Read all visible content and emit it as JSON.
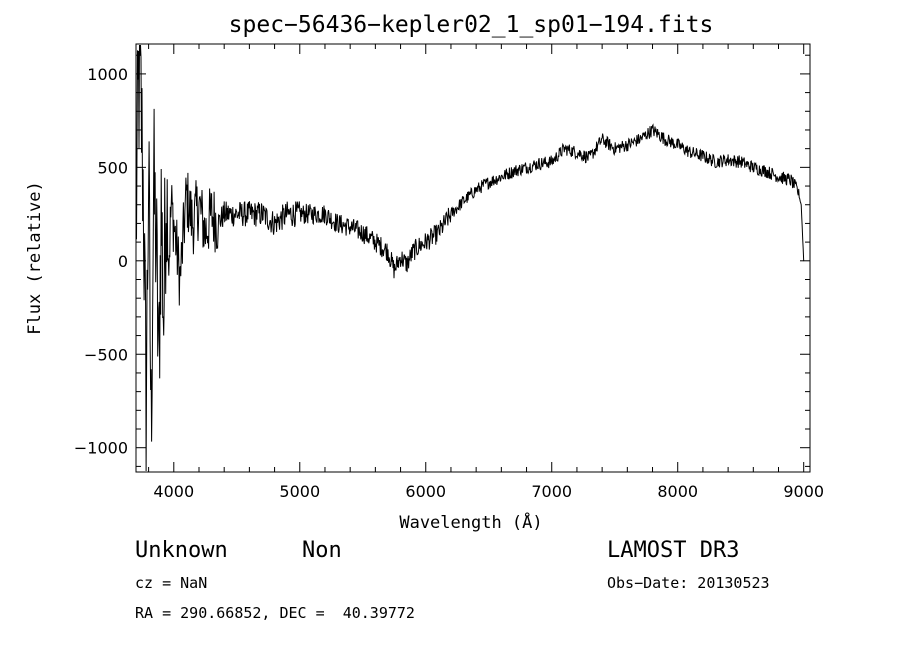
{
  "chart_data": {
    "type": "line",
    "title": "spec−56436−kepler02_1_sp01−194.fits",
    "xlabel": "Wavelength (Å)",
    "ylabel": "Flux (relative)",
    "xlim": [
      3700,
      9050
    ],
    "ylim": [
      -1130,
      1160
    ],
    "xticks": [
      4000,
      5000,
      6000,
      7000,
      8000,
      9000
    ],
    "xtick_labels": [
      "4000",
      "5000",
      "6000",
      "7000",
      "8000",
      "9000"
    ],
    "yticks": [
      -1000,
      -500,
      0,
      500,
      1000
    ],
    "ytick_labels": [
      "−1000",
      "−500",
      "0",
      "500",
      "1000"
    ],
    "grid": false,
    "legend": "none",
    "series": [
      {
        "x": [
          3700,
          3720,
          3740,
          3760,
          3780,
          3800,
          3820,
          3840,
          3860,
          3880,
          3900,
          3920,
          3940,
          3960,
          3980,
          4000,
          4050,
          4100,
          4150,
          4200,
          4250,
          4300,
          4350,
          4400,
          4500,
          4600,
          4700,
          4800,
          4900,
          5000,
          5100,
          5200,
          5300,
          5400,
          5500,
          5600,
          5700,
          5750,
          5800,
          5850,
          5900,
          5950,
          6000,
          6100,
          6200,
          6300,
          6400,
          6500,
          6600,
          6700,
          6800,
          6900,
          7000,
          7100,
          7200,
          7300,
          7400,
          7500,
          7600,
          7700,
          7800,
          7900,
          8000,
          8100,
          8200,
          8300,
          8400,
          8500,
          8600,
          8700,
          8800,
          8900,
          8950,
          8980,
          9000
        ],
        "y": [
          150,
          950,
          850,
          300,
          -800,
          500,
          -900,
          400,
          100,
          -600,
          300,
          -300,
          450,
          0,
          300,
          200,
          -100,
          350,
          200,
          300,
          150,
          250,
          200,
          250,
          250,
          250,
          250,
          200,
          250,
          250,
          250,
          250,
          200,
          180,
          150,
          100,
          50,
          -50,
          20,
          -20,
          50,
          80,
          100,
          150,
          250,
          320,
          380,
          420,
          450,
          480,
          500,
          520,
          530,
          600,
          580,
          550,
          650,
          600,
          620,
          650,
          700,
          650,
          620,
          580,
          560,
          530,
          540,
          530,
          500,
          480,
          450,
          430,
          380,
          300,
          0
        ]
      }
    ]
  },
  "info": {
    "object_class": "Unknown",
    "object_subclass": "Non",
    "survey": "LAMOST DR3",
    "cz": "cz = NaN",
    "obs_date": "Obs−Date: 20130523",
    "coords": "RA = 290.66852, DEC =  40.39772"
  }
}
